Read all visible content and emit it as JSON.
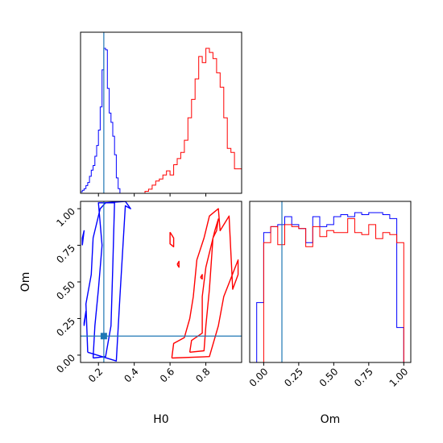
{
  "chart_data": [
    {
      "type": "histogram",
      "panel": "H0 marginal",
      "xlim": [
        0.1,
        1.0
      ],
      "truth": 0.23,
      "series": [
        {
          "color": "#0000ff",
          "bin_edges": [
            0.1,
            0.11,
            0.12,
            0.13,
            0.14,
            0.15,
            0.16,
            0.17,
            0.18,
            0.19,
            0.2,
            0.21,
            0.22,
            0.23,
            0.24,
            0.25,
            0.26,
            0.27,
            0.28,
            0.29,
            0.3,
            0.31,
            0.32
          ],
          "counts": [
            2,
            4,
            6,
            10,
            14,
            22,
            30,
            36,
            48,
            62,
            82,
            112,
            160,
            188,
            186,
            136,
            104,
            92,
            74,
            50,
            20,
            6
          ]
        },
        {
          "color": "#ff0000",
          "bin_edges": [
            0.46,
            0.48,
            0.5,
            0.52,
            0.54,
            0.56,
            0.58,
            0.6,
            0.62,
            0.64,
            0.66,
            0.68,
            0.7,
            0.72,
            0.74,
            0.76,
            0.78,
            0.8,
            0.82,
            0.84,
            0.86,
            0.88,
            0.9,
            0.92,
            0.94,
            0.96,
            0.98,
            1.0
          ],
          "counts": [
            2,
            4,
            8,
            12,
            14,
            18,
            22,
            18,
            28,
            34,
            40,
            52,
            74,
            92,
            112,
            134,
            128,
            142,
            138,
            132,
            118,
            104,
            74,
            44,
            40,
            24,
            24
          ]
        }
      ]
    },
    {
      "type": "contour",
      "panel": "H0 vs Om",
      "xlabel": "H0",
      "ylabel": "Om",
      "xlim": [
        0.1,
        1.0
      ],
      "ylim": [
        -0.05,
        1.05
      ],
      "xticks": [
        "0.2",
        "0.4",
        "0.6",
        "0.8"
      ],
      "yticks": [
        "0.00",
        "0.25",
        "0.50",
        "0.75",
        "1.00"
      ],
      "truth": {
        "x": 0.23,
        "y": 0.13
      },
      "series": [
        {
          "color": "#0000ff",
          "levels": [
            [
              [
                0.17,
                -0.02
              ],
              [
                0.24,
                -0.01
              ],
              [
                0.27,
                0.2
              ],
              [
                0.28,
                0.6
              ],
              [
                0.29,
                1.04
              ],
              [
                0.2,
                1.04
              ],
              [
                0.22,
                0.75
              ],
              [
                0.2,
                0.45
              ],
              [
                0.18,
                0.2
              ],
              [
                0.17,
                -0.02
              ]
            ],
            [
              [
                0.14,
                0.02
              ],
              [
                0.3,
                -0.04
              ],
              [
                0.32,
                0.4
              ],
              [
                0.35,
                1.02
              ],
              [
                0.38,
                1.0
              ],
              [
                0.35,
                1.05
              ],
              [
                0.24,
                1.04
              ],
              [
                0.21,
                1.0
              ],
              [
                0.17,
                0.8
              ],
              [
                0.16,
                0.55
              ],
              [
                0.13,
                0.35
              ],
              [
                0.14,
                0.02
              ]
            ],
            [
              [
                0.12,
                0.2
              ],
              [
                0.13,
                0.3
              ],
              [
                0.12,
                0.22
              ],
              [
                0.12,
                0.2
              ]
            ],
            [
              [
                0.11,
                0.75
              ],
              [
                0.12,
                0.85
              ],
              [
                0.11,
                0.8
              ],
              [
                0.11,
                0.75
              ]
            ]
          ]
        },
        {
          "color": "#ff0000",
          "levels": [
            [
              [
                0.71,
                0.02
              ],
              [
                0.79,
                0.03
              ],
              [
                0.8,
                0.2
              ],
              [
                0.82,
                0.45
              ],
              [
                0.84,
                0.8
              ],
              [
                0.86,
                0.85
              ],
              [
                0.87,
                0.93
              ],
              [
                0.85,
                0.85
              ],
              [
                0.8,
                0.6
              ],
              [
                0.78,
                0.4
              ],
              [
                0.78,
                0.15
              ],
              [
                0.72,
                0.1
              ],
              [
                0.71,
                0.02
              ]
            ],
            [
              [
                0.61,
                -0.02
              ],
              [
                0.82,
                -0.01
              ],
              [
                0.87,
                0.2
              ],
              [
                0.9,
                0.4
              ],
              [
                0.98,
                0.65
              ],
              [
                0.98,
                0.55
              ],
              [
                0.95,
                0.45
              ],
              [
                0.93,
                0.95
              ],
              [
                0.88,
                0.85
              ],
              [
                0.87,
                1.0
              ],
              [
                0.82,
                0.95
              ],
              [
                0.79,
                0.8
              ],
              [
                0.75,
                0.65
              ],
              [
                0.73,
                0.4
              ],
              [
                0.71,
                0.25
              ],
              [
                0.68,
                0.12
              ],
              [
                0.62,
                0.08
              ],
              [
                0.61,
                -0.02
              ]
            ],
            [
              [
                0.6,
                0.84
              ],
              [
                0.62,
                0.8
              ],
              [
                0.62,
                0.74
              ],
              [
                0.6,
                0.76
              ],
              [
                0.6,
                0.84
              ]
            ],
            [
              [
                0.64,
                0.62
              ],
              [
                0.65,
                0.6
              ],
              [
                0.65,
                0.64
              ],
              [
                0.64,
                0.62
              ]
            ],
            [
              [
                0.77,
                0.53
              ],
              [
                0.78,
                0.55
              ],
              [
                0.78,
                0.52
              ],
              [
                0.77,
                0.53
              ]
            ]
          ]
        }
      ]
    },
    {
      "type": "histogram",
      "panel": "Om marginal",
      "xlabel": "Om",
      "xlim": [
        -0.1,
        1.05
      ],
      "xticks": [
        "0.00",
        "0.25",
        "0.50",
        "0.75",
        "1.00"
      ],
      "truth": 0.13,
      "series": [
        {
          "color": "#0000ff",
          "bin_edges": [
            -0.1,
            -0.05,
            0.0,
            0.05,
            0.1,
            0.15,
            0.2,
            0.25,
            0.3,
            0.35,
            0.4,
            0.45,
            0.5,
            0.55,
            0.6,
            0.65,
            0.7,
            0.75,
            0.8,
            0.85,
            0.9,
            0.95,
            1.0,
            1.05
          ],
          "counts": [
            0,
            120,
            260,
            272,
            276,
            292,
            276,
            268,
            240,
            292,
            272,
            276,
            292,
            296,
            292,
            300,
            296,
            300,
            300,
            296,
            288,
            70,
            0
          ]
        },
        {
          "color": "#ff0000",
          "bin_edges": [
            0.0,
            0.05,
            0.1,
            0.15,
            0.2,
            0.25,
            0.3,
            0.35,
            0.4,
            0.45,
            0.5,
            0.55,
            0.6,
            0.65,
            0.7,
            0.75,
            0.8,
            0.85,
            0.9,
            0.95,
            1.0
          ],
          "counts": [
            240,
            272,
            236,
            276,
            272,
            268,
            232,
            272,
            252,
            264,
            260,
            260,
            288,
            260,
            256,
            276,
            248,
            260,
            256,
            240
          ]
        }
      ]
    }
  ]
}
